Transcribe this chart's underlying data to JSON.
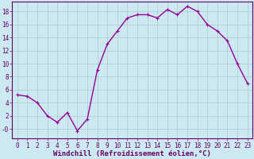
{
  "x": [
    0,
    1,
    2,
    3,
    4,
    5,
    6,
    7,
    8,
    9,
    10,
    11,
    12,
    13,
    14,
    15,
    16,
    17,
    18,
    19,
    20,
    21,
    22,
    23
  ],
  "y": [
    5.2,
    5.0,
    4.0,
    2.0,
    1.0,
    2.5,
    -0.3,
    1.5,
    9.0,
    13.0,
    15.0,
    17.0,
    17.5,
    17.5,
    17.0,
    18.3,
    17.5,
    18.8,
    18.0,
    16.0,
    15.0,
    13.5,
    10.0,
    7.0
  ],
  "line_color": "#990099",
  "marker": "P",
  "marker_size": 2.5,
  "bg_color": "#cce8f0",
  "grid_color": "#aacccc",
  "xlabel": "Windchill (Refroidissement éolien,°C)",
  "xlabel_color": "#660066",
  "tick_color": "#660066",
  "axis_color": "#660066",
  "ylim": [
    -1.5,
    19.5
  ],
  "xlim": [
    -0.5,
    23.5
  ],
  "yticks": [
    0,
    2,
    4,
    6,
    8,
    10,
    12,
    14,
    16,
    18
  ],
  "ytick_labels": [
    "-0",
    "2",
    "4",
    "6",
    "8",
    "10",
    "12",
    "14",
    "16",
    "18"
  ],
  "xticks": [
    0,
    1,
    2,
    3,
    4,
    5,
    6,
    7,
    8,
    9,
    10,
    11,
    12,
    13,
    14,
    15,
    16,
    17,
    18,
    19,
    20,
    21,
    22,
    23
  ],
  "line_width": 1.0,
  "tick_fontsize": 5.5,
  "xlabel_fontsize": 6.5
}
